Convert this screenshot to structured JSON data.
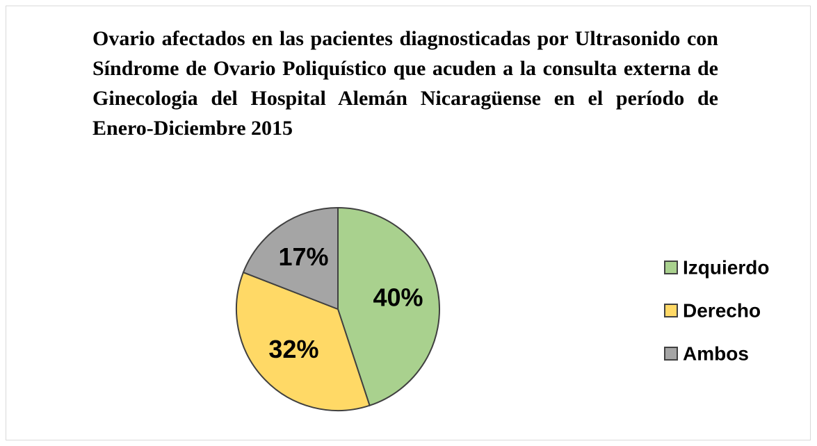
{
  "chart_data": {
    "type": "pie",
    "title": "Ovario afectados en las pacientes diagnosticadas por Ultrasonido con Síndrome de Ovario Poliquístico que acuden a la consulta externa de Ginecologia del  Hospital Alemán Nicaragüense en el período de Enero-Diciembre 2015",
    "categories": [
      "Izquierdo",
      "Derecho",
      "Ambos"
    ],
    "values": [
      40,
      32,
      17
    ],
    "value_labels": [
      "40%",
      "32%",
      "17%"
    ],
    "colors": [
      "#a9d18e",
      "#ffd966",
      "#a5a5a5"
    ],
    "legend": "right"
  }
}
